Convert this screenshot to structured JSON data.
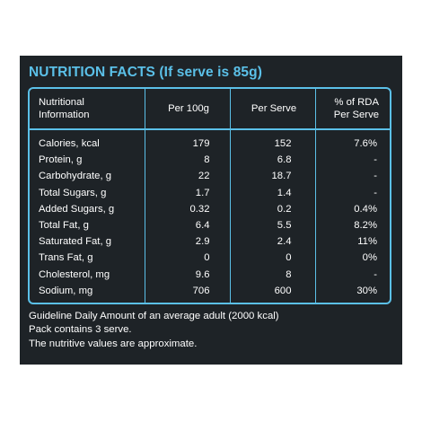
{
  "label": {
    "title": "NUTRITION FACTS (If serve is 85g)",
    "accent_color": "#5bc0e8",
    "background_color": "#1e2327"
  },
  "table": {
    "headers": {
      "nutrient_line1": "Nutritional",
      "nutrient_line2": "Information",
      "per100": "Per 100g",
      "perserve": "Per Serve",
      "rda_line1": "% of RDA",
      "rda_line2": "Per Serve"
    },
    "rows": [
      {
        "nutrient": "Calories, kcal",
        "per100": "179",
        "perserve": "152",
        "rda": "7.6%"
      },
      {
        "nutrient": "Protein, g",
        "per100": "8",
        "perserve": "6.8",
        "rda": "-"
      },
      {
        "nutrient": "Carbohydrate, g",
        "per100": "22",
        "perserve": "18.7",
        "rda": "-"
      },
      {
        "nutrient": "Total Sugars, g",
        "per100": "1.7",
        "perserve": "1.4",
        "rda": "-"
      },
      {
        "nutrient": "Added Sugars, g",
        "per100": "0.32",
        "perserve": "0.2",
        "rda": "0.4%"
      },
      {
        "nutrient": "Total Fat, g",
        "per100": "6.4",
        "perserve": "5.5",
        "rda": "8.2%"
      },
      {
        "nutrient": "Saturated Fat, g",
        "per100": "2.9",
        "perserve": "2.4",
        "rda": "11%"
      },
      {
        "nutrient": "Trans Fat, g",
        "per100": "0",
        "perserve": "0",
        "rda": "0%"
      },
      {
        "nutrient": "Cholesterol, mg",
        "per100": "9.6",
        "perserve": "8",
        "rda": "-"
      },
      {
        "nutrient": "Sodium, mg",
        "per100": "706",
        "perserve": "600",
        "rda": "30%"
      }
    ]
  },
  "footnotes": [
    "Guideline Daily Amount of an average adult (2000 kcal)",
    "Pack contains 3 serve.",
    "The nutritive values are approximate."
  ]
}
